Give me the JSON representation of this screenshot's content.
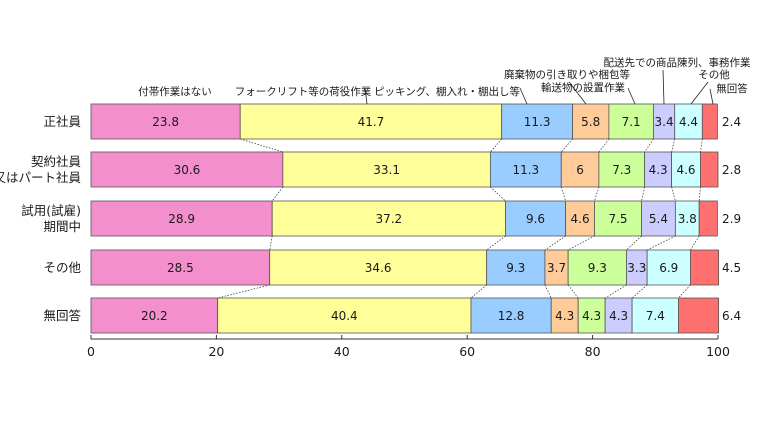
{
  "chart_data": {
    "type": "bar",
    "orientation": "horizontal",
    "stacked": true,
    "xlim": [
      0,
      100
    ],
    "xticks": [
      0,
      20,
      40,
      60,
      80,
      100
    ],
    "categories": [
      "正社員",
      "契約社員\n又はパート社員",
      "試用(試雇)\n期間中",
      "その他",
      "無回答"
    ],
    "series": [
      {
        "name": "付帯作業はない",
        "color": "#f48fcd",
        "values": [
          23.8,
          30.6,
          28.9,
          28.5,
          20.2
        ]
      },
      {
        "name": "フォークリフト等の荷役作業",
        "color": "#ffff99",
        "values": [
          41.7,
          33.1,
          37.2,
          34.6,
          40.4
        ]
      },
      {
        "name": "ピッキング、棚入れ・棚出し等",
        "color": "#99ccff",
        "values": [
          11.3,
          11.3,
          9.6,
          9.3,
          12.8
        ]
      },
      {
        "name": "廃棄物の引き取りや梱包等",
        "color": "#ffcc99",
        "values": [
          5.8,
          6.0,
          4.6,
          3.7,
          4.3
        ]
      },
      {
        "name": "輸送物の設置作業",
        "color": "#ccff99",
        "values": [
          7.1,
          7.3,
          7.5,
          9.3,
          4.3
        ]
      },
      {
        "name": "配送先での商品陳列、事務作業",
        "color": "#ccccff",
        "values": [
          3.4,
          4.3,
          5.4,
          3.3,
          4.3
        ]
      },
      {
        "name": "その他",
        "color": "#ccffff",
        "values": [
          4.4,
          4.6,
          3.8,
          6.9,
          7.4
        ]
      },
      {
        "name": "無回答",
        "color": "#ff7070",
        "values": [
          2.4,
          2.8,
          2.9,
          4.5,
          6.4
        ]
      }
    ],
    "grid": false,
    "legend": "top, callout labels with leader lines"
  }
}
